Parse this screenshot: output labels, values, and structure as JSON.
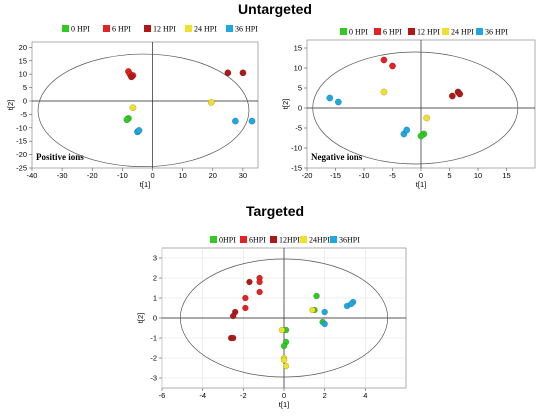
{
  "headings": {
    "untargeted": "Untargeted",
    "targeted": "Targeted"
  },
  "colors": {
    "0 HPI": "#2ecc1f",
    "6 HPI": "#e32222",
    "12 HPI": "#b01818",
    "24 HPI": "#f0e02a",
    "36 HPI": "#1fa7e0"
  },
  "chart_data": [
    {
      "id": "positive",
      "type": "scatter",
      "title": "",
      "xlabel": "t[1]",
      "ylabel": "t[2]",
      "xlim": [
        -40,
        35
      ],
      "ylim": [
        -25,
        22
      ],
      "xticks": [
        "-40",
        "-30",
        "-20",
        "-10",
        "0",
        "10",
        "20",
        "30"
      ],
      "xtick_values": [
        -40,
        -30,
        -20,
        -10,
        0,
        10,
        20,
        30
      ],
      "yticks": [
        "-25",
        "-20",
        "-15",
        "-10",
        "-5",
        "0",
        "5",
        "10",
        "15",
        "20"
      ],
      "ytick_values": [
        -25,
        -20,
        -15,
        -10,
        -5,
        0,
        5,
        10,
        15,
        20
      ],
      "annotation": "Positive ions",
      "legend": [
        "0 HPI",
        "6 HPI",
        "12 HPI",
        "24 HPI",
        "36 HPI"
      ],
      "legend_placement": "top",
      "grid": false,
      "ellipse": {
        "center": [
          -3,
          -3.5
        ],
        "radii": [
          35,
          21
        ]
      },
      "series": [
        {
          "name": "0 HPI",
          "points": [
            [
              -8,
              -6.5
            ],
            [
              -8.5,
              -7
            ]
          ]
        },
        {
          "name": "6 HPI",
          "points": [
            [
              -8,
              11
            ],
            [
              -7.5,
              10
            ],
            [
              -6.5,
              9.5
            ]
          ]
        },
        {
          "name": "12 HPI",
          "points": [
            [
              25,
              10.5
            ],
            [
              30,
              10.5
            ],
            [
              -7,
              9
            ]
          ]
        },
        {
          "name": "24 HPI",
          "points": [
            [
              -6.5,
              -2.5
            ],
            [
              19.5,
              -0.5
            ]
          ]
        },
        {
          "name": "36 HPI",
          "points": [
            [
              -5,
              -11.5
            ],
            [
              -4.5,
              -11
            ],
            [
              27.5,
              -7.5
            ],
            [
              33,
              -7.5
            ]
          ]
        }
      ]
    },
    {
      "id": "negative",
      "type": "scatter",
      "title": "",
      "xlabel": "t[1]",
      "ylabel": "t[2]",
      "xlim": [
        -20,
        20
      ],
      "ylim": [
        -15,
        17
      ],
      "xticks": [
        "-20",
        "-15",
        "-10",
        "-5",
        "0",
        "5",
        "10",
        "15"
      ],
      "xtick_values": [
        -20,
        -15,
        -10,
        -5,
        0,
        5,
        10,
        15
      ],
      "yticks": [
        "-15",
        "-10",
        "-5",
        "0",
        "5",
        "10",
        "15"
      ],
      "ytick_values": [
        -15,
        -10,
        -5,
        0,
        5,
        10,
        15
      ],
      "annotation": "Negative ions",
      "legend": [
        "0 HPI",
        "6 HPI",
        "12 HPI",
        "24 HPI",
        "36 HPI"
      ],
      "legend_placement": "top",
      "grid": false,
      "ellipse": {
        "center": [
          -1,
          0
        ],
        "radii": [
          18,
          14
        ]
      },
      "series": [
        {
          "name": "0 HPI",
          "points": [
            [
              0.5,
              -6.5
            ],
            [
              0,
              -7
            ]
          ]
        },
        {
          "name": "6 HPI",
          "points": [
            [
              -6.5,
              12
            ],
            [
              -5,
              10.5
            ]
          ]
        },
        {
          "name": "12 HPI",
          "points": [
            [
              5.5,
              3
            ],
            [
              6.5,
              4
            ],
            [
              6.8,
              3.5
            ]
          ]
        },
        {
          "name": "24 HPI",
          "points": [
            [
              -6.5,
              4
            ],
            [
              1,
              -2.5
            ]
          ]
        },
        {
          "name": "36 HPI",
          "points": [
            [
              -16,
              2.5
            ],
            [
              -14.5,
              1.5
            ],
            [
              -3,
              -6.5
            ],
            [
              -2.5,
              -5.5
            ]
          ]
        }
      ]
    },
    {
      "id": "targeted",
      "type": "scatter",
      "title": "",
      "xlabel": "t[1]",
      "ylabel": "t[2]",
      "xlim": [
        -6,
        6
      ],
      "ylim": [
        -3.5,
        3.5
      ],
      "xticks": [
        "-6",
        "-4",
        "-2",
        "0",
        "2",
        "4"
      ],
      "xtick_values": [
        -6,
        -4,
        -2,
        0,
        2,
        4
      ],
      "yticks": [
        "-3",
        "-2",
        "-1",
        "0",
        "1",
        "2",
        "3"
      ],
      "ytick_values": [
        -3,
        -2,
        -1,
        0,
        1,
        2,
        3
      ],
      "annotation": "",
      "legend": [
        "0HPI",
        "6HPI",
        "12HPI",
        "24HPI",
        "36HPI"
      ],
      "legend_placement": "top",
      "grid": true,
      "ellipse": {
        "center": [
          0,
          0
        ],
        "radii": [
          5.1,
          2.95
        ]
      },
      "series": [
        {
          "name": "0HPI",
          "points": [
            [
              0.1,
              -0.6
            ],
            [
              0.1,
              -1.2
            ],
            [
              0,
              -1.4
            ],
            [
              1.5,
              0.4
            ],
            [
              1.6,
              1.1
            ],
            [
              1.9,
              -0.2
            ]
          ]
        },
        {
          "name": "6HPI",
          "points": [
            [
              -1.2,
              2
            ],
            [
              -1.2,
              1.8
            ],
            [
              -1.2,
              1.3
            ],
            [
              -1.9,
              1
            ],
            [
              -1.9,
              0.5
            ]
          ]
        },
        {
          "name": "12HPI",
          "points": [
            [
              -1.7,
              1.8
            ],
            [
              -2.4,
              0.3
            ],
            [
              -2.5,
              0.1
            ],
            [
              -2.6,
              -1
            ],
            [
              -2.5,
              -1
            ]
          ]
        },
        {
          "name": "24HPI",
          "points": [
            [
              -0.1,
              -0.6
            ],
            [
              0,
              -2
            ],
            [
              0,
              -2.1
            ],
            [
              0.1,
              -2.4
            ],
            [
              1.4,
              0.4
            ]
          ]
        },
        {
          "name": "36HPI",
          "points": [
            [
              2,
              0.3
            ],
            [
              2,
              -0.3
            ],
            [
              3.1,
              0.6
            ],
            [
              3.4,
              0.8
            ],
            [
              3.3,
              0.7
            ]
          ]
        }
      ]
    }
  ]
}
